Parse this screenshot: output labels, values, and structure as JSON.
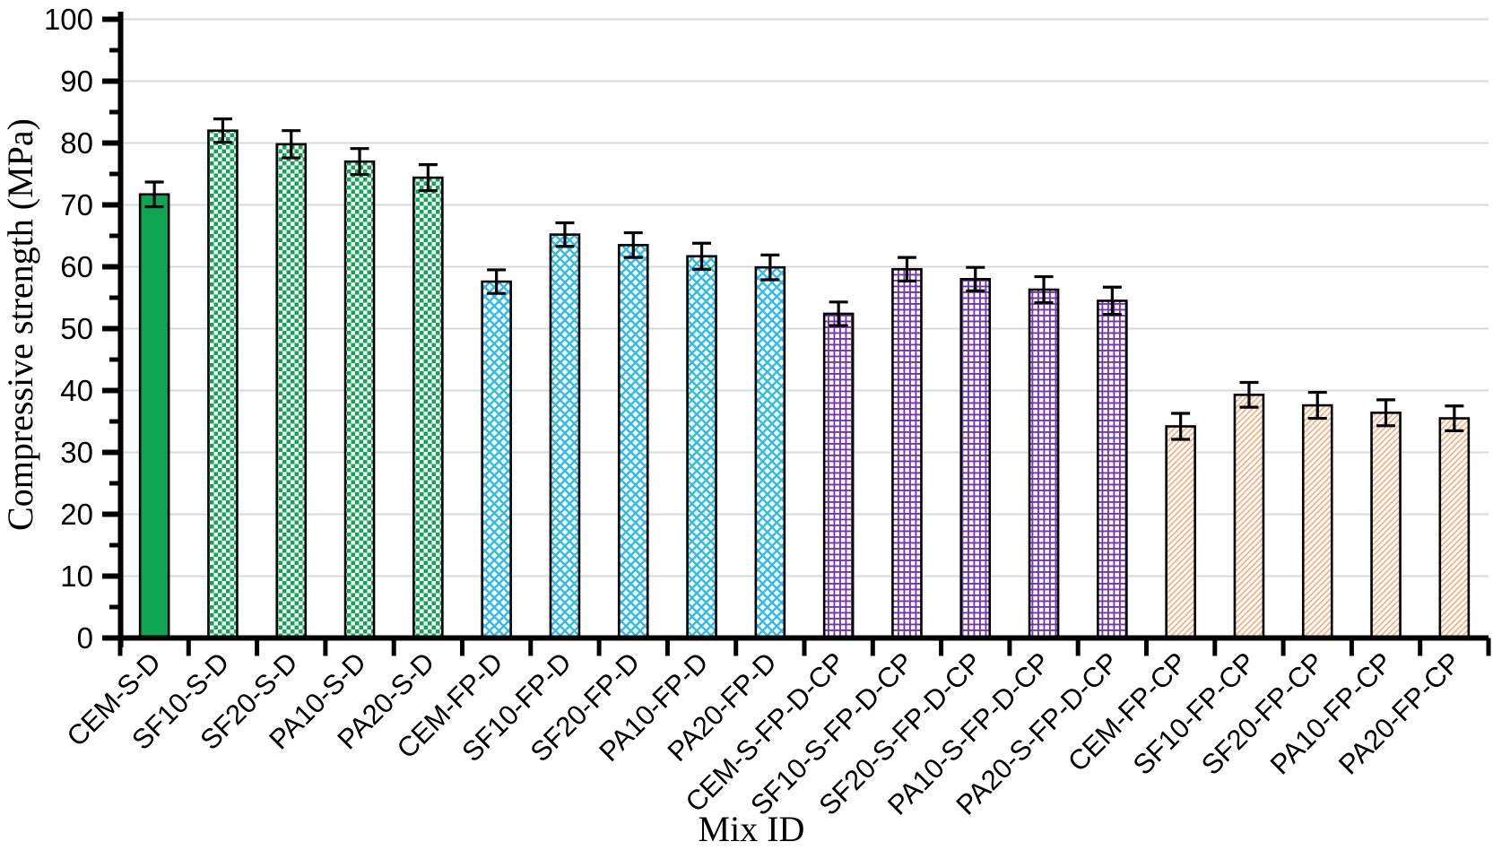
{
  "chart_data": {
    "type": "bar",
    "title": "",
    "xlabel": "Mix ID",
    "ylabel": "Compressive strength (MPa)",
    "ylim": [
      0,
      100
    ],
    "yticks": [
      0,
      10,
      20,
      30,
      40,
      50,
      60,
      70,
      80,
      90,
      100
    ],
    "ytick_minor_step": 5,
    "grid": "horizontal-major",
    "legend": "none",
    "categories": [
      "CEM-S-D",
      "SF10-S-D",
      "SF20-S-D",
      "PA10-S-D",
      "PA20-S-D",
      "CEM-FP-D",
      "SF10-FP-D",
      "SF20-FP-D",
      "PA10-FP-D",
      "PA20-FP-D",
      "CEM-S-FP-D-CP",
      "SF10-S-FP-D-CP",
      "SF20-S-FP-D-CP",
      "PA10-S-FP-D-CP",
      "PA20-S-FP-D-CP",
      "CEM-FP-CP",
      "SF10-FP-CP",
      "SF20-FP-CP",
      "PA10-FP-CP",
      "PA20-FP-CP"
    ],
    "values": [
      71.7,
      82.0,
      79.8,
      77.0,
      74.4,
      57.6,
      65.2,
      63.5,
      61.7,
      59.9,
      52.4,
      59.6,
      58.0,
      56.3,
      54.5,
      34.2,
      39.3,
      37.6,
      36.4,
      35.5
    ],
    "errors": [
      2.0,
      1.9,
      2.2,
      2.1,
      2.1,
      1.9,
      1.9,
      2.0,
      2.1,
      2.0,
      1.9,
      1.9,
      1.9,
      2.1,
      2.2,
      2.1,
      2.0,
      2.1,
      2.1,
      2.0
    ],
    "style_groups": [
      {
        "name": "solid-green",
        "indices": [
          0
        ],
        "pattern": "solid",
        "color": "#0EA650"
      },
      {
        "name": "green-checker",
        "indices": [
          1,
          2,
          3,
          4
        ],
        "pattern": "checker",
        "color": "#0EA650"
      },
      {
        "name": "cyan-lattice",
        "indices": [
          5,
          6,
          7,
          8,
          9
        ],
        "pattern": "diagonal-cross",
        "color": "#31BCE6"
      },
      {
        "name": "purple-grid",
        "indices": [
          10,
          11,
          12,
          13,
          14
        ],
        "pattern": "grid",
        "color": "#7534AE"
      },
      {
        "name": "tan-diagonal",
        "indices": [
          15,
          16,
          17,
          18,
          19
        ],
        "pattern": "diagonal",
        "color": "#F4B183"
      }
    ],
    "colors": {
      "bar_outline": "#000000",
      "error_bar": "#000000",
      "gridline": "#D9D9D9",
      "axis": "#000000",
      "pattern_background": "#FFFFFF"
    }
  }
}
